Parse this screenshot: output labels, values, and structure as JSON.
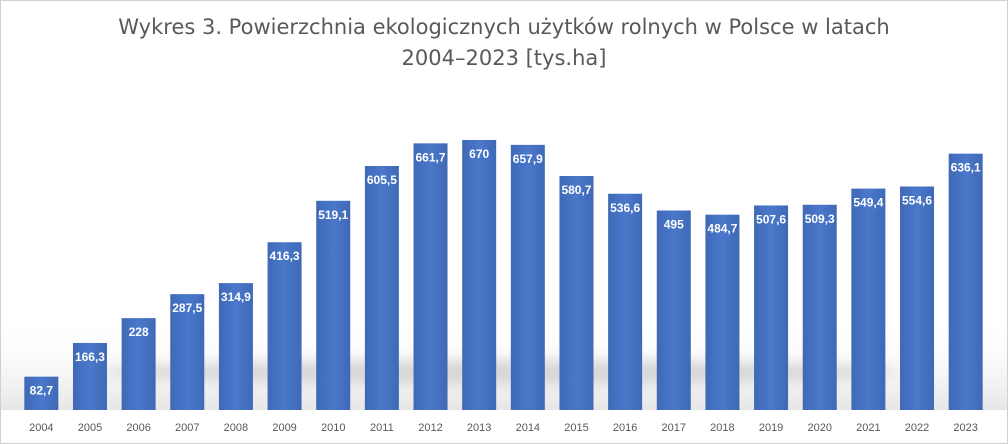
{
  "chart_data": {
    "type": "bar",
    "title_line1": "Wykres 3. Powierzchnia ekologicznych użytków rolnych w Polsce w latach",
    "title_line2": "2004–2023 [tys.ha]",
    "categories": [
      "2004",
      "2005",
      "2006",
      "2007",
      "2008",
      "2009",
      "2010",
      "2011",
      "2012",
      "2013",
      "2014",
      "2015",
      "2016",
      "2017",
      "2018",
      "2019",
      "2020",
      "2021",
      "2022",
      "2023"
    ],
    "values": [
      82.7,
      166.3,
      228,
      287.5,
      314.9,
      416.3,
      519.1,
      605.5,
      661.7,
      670,
      657.9,
      580.7,
      536.6,
      495,
      484.7,
      507.6,
      509.3,
      549.4,
      554.6,
      636.1
    ],
    "value_labels": [
      "82,7",
      "166,3",
      "228",
      "287,5",
      "314,9",
      "416,3",
      "519,1",
      "605,5",
      "661,7",
      "670",
      "657,9",
      "580,7",
      "536,6",
      "495",
      "484,7",
      "507,6",
      "509,3",
      "549,4",
      "554,6",
      "636,1"
    ],
    "ylim": [
      0,
      700
    ],
    "grid": false,
    "legend": "none",
    "bar_color": "#4472c4"
  }
}
